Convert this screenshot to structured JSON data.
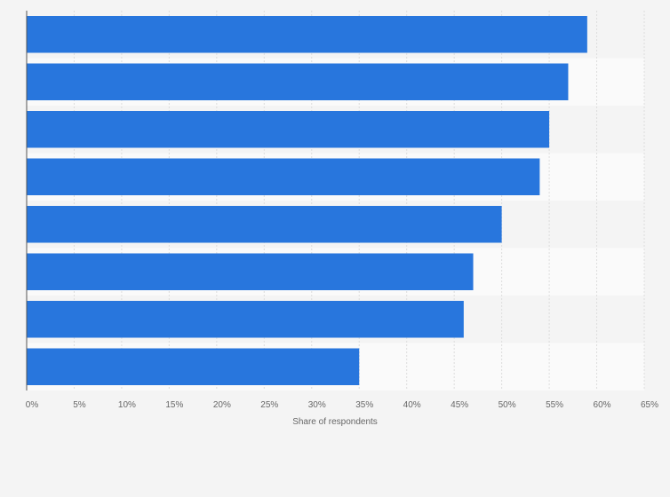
{
  "chart_data": {
    "type": "bar",
    "orientation": "horizontal",
    "categories": [
      "",
      "",
      "",
      "",
      "",
      "",
      "",
      ""
    ],
    "values": [
      59,
      57,
      55,
      54,
      50,
      47,
      46,
      35
    ],
    "xlabel": "Share of respondents",
    "ylabel": "",
    "xlim": [
      0,
      65
    ],
    "ticks": [
      0,
      5,
      10,
      15,
      20,
      25,
      30,
      35,
      40,
      45,
      50,
      55,
      60,
      65
    ],
    "tick_suffix": "%",
    "grid": true,
    "legend": "none",
    "bar_color": "#2876dd",
    "band_colors": [
      "#f4f4f4",
      "#fafafa"
    ],
    "gridline_color": "#dddddd"
  }
}
